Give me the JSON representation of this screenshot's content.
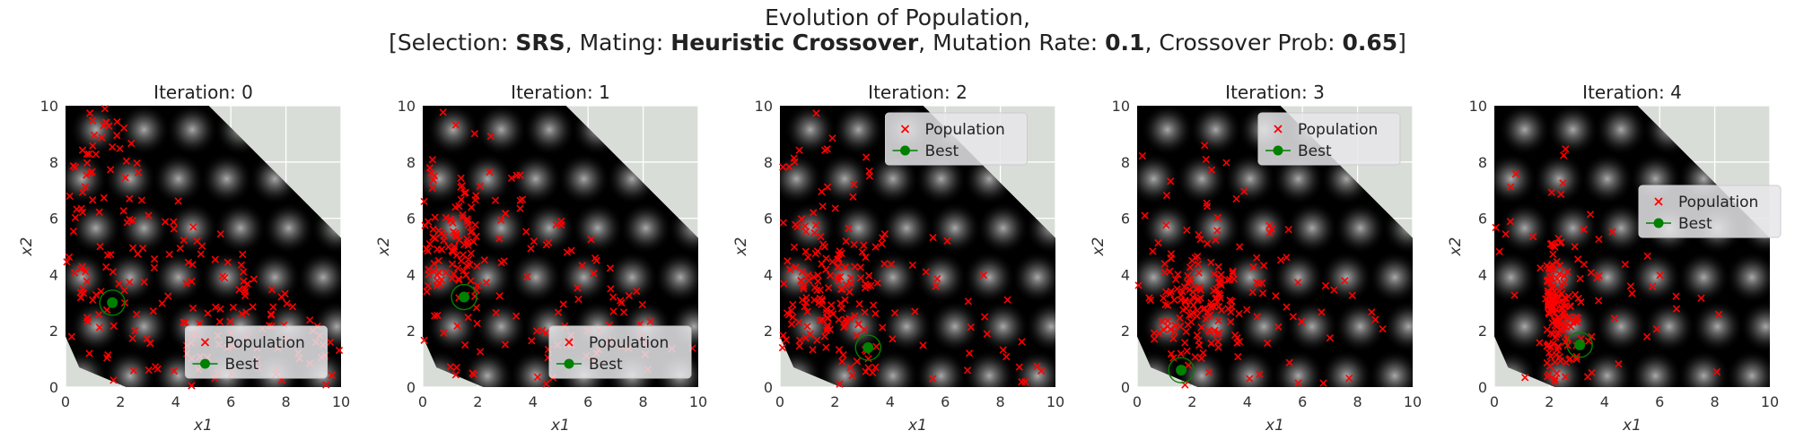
{
  "figure": {
    "title_line1": "Evolution of Population,",
    "title_parts": [
      {
        "text": "[Selection: ",
        "bold": false
      },
      {
        "text": "SRS",
        "bold": true
      },
      {
        "text": ", Mating: ",
        "bold": false
      },
      {
        "text": "Heuristic Crossover",
        "bold": true
      },
      {
        "text": ", Mutation Rate: ",
        "bold": false
      },
      {
        "text": "0.1",
        "bold": true
      },
      {
        "text": ", Crossover Prob: ",
        "bold": false
      },
      {
        "text": "0.65",
        "bold": true
      },
      {
        "text": "]",
        "bold": false
      }
    ]
  },
  "colors": {
    "population": "#ff0000",
    "best": "#008000",
    "outside_region": "#d9ddd7",
    "grid": "#ffffff"
  },
  "chart_data": [
    {
      "type": "scatter",
      "title": "Iteration: 0",
      "xlabel": "x1",
      "ylabel": "x2",
      "xlim": [
        0,
        10
      ],
      "ylim": [
        0,
        10
      ],
      "xticks": [
        0,
        2,
        4,
        6,
        8,
        10
      ],
      "yticks": [
        0,
        2,
        4,
        6,
        8,
        10
      ],
      "legend_position": "lower-center",
      "series": [
        {
          "name": "Population",
          "marker": "x",
          "count": 200
        },
        {
          "name": "Best",
          "marker": "o"
        }
      ],
      "best": [
        1.7,
        3.0
      ]
    },
    {
      "type": "scatter",
      "title": "Iteration: 1",
      "xlabel": "x1",
      "ylabel": "x2",
      "xlim": [
        0,
        10
      ],
      "ylim": [
        0,
        10
      ],
      "xticks": [
        0,
        2,
        4,
        6,
        8,
        10
      ],
      "yticks": [
        0,
        2,
        4,
        6,
        8,
        10
      ],
      "legend_position": "lower-right",
      "series": [
        {
          "name": "Population",
          "marker": "x",
          "count": 200
        },
        {
          "name": "Best",
          "marker": "o"
        }
      ],
      "best": [
        1.5,
        3.2
      ]
    },
    {
      "type": "scatter",
      "title": "Iteration: 2",
      "xlabel": "x1",
      "ylabel": "x2",
      "xlim": [
        0,
        10
      ],
      "ylim": [
        0,
        10
      ],
      "xticks": [
        0,
        2,
        4,
        6,
        8,
        10
      ],
      "yticks": [
        0,
        2,
        4,
        6,
        8,
        10
      ],
      "legend_position": "upper-center",
      "series": [
        {
          "name": "Population",
          "marker": "x",
          "count": 200
        },
        {
          "name": "Best",
          "marker": "o"
        }
      ],
      "best": [
        3.2,
        1.4
      ]
    },
    {
      "type": "scatter",
      "title": "Iteration: 3",
      "xlabel": "x1",
      "ylabel": "x2",
      "xlim": [
        0,
        10
      ],
      "ylim": [
        0,
        10
      ],
      "xticks": [
        0,
        2,
        4,
        6,
        8,
        10
      ],
      "yticks": [
        0,
        2,
        4,
        6,
        8,
        10
      ],
      "legend_position": "upper-right",
      "series": [
        {
          "name": "Population",
          "marker": "x",
          "count": 200
        },
        {
          "name": "Best",
          "marker": "o"
        }
      ],
      "best": [
        1.6,
        0.6
      ]
    },
    {
      "type": "scatter",
      "title": "Iteration: 4",
      "xlabel": "x1",
      "ylabel": "x2",
      "xlim": [
        0,
        10
      ],
      "ylim": [
        0,
        10
      ],
      "xticks": [
        0,
        2,
        4,
        6,
        8,
        10
      ],
      "yticks": [
        0,
        2,
        4,
        6,
        8,
        10
      ],
      "legend_position": "center-right",
      "series": [
        {
          "name": "Population",
          "marker": "x",
          "count": 200
        },
        {
          "name": "Best",
          "marker": "o"
        }
      ],
      "best": [
        3.1,
        1.5
      ]
    }
  ]
}
